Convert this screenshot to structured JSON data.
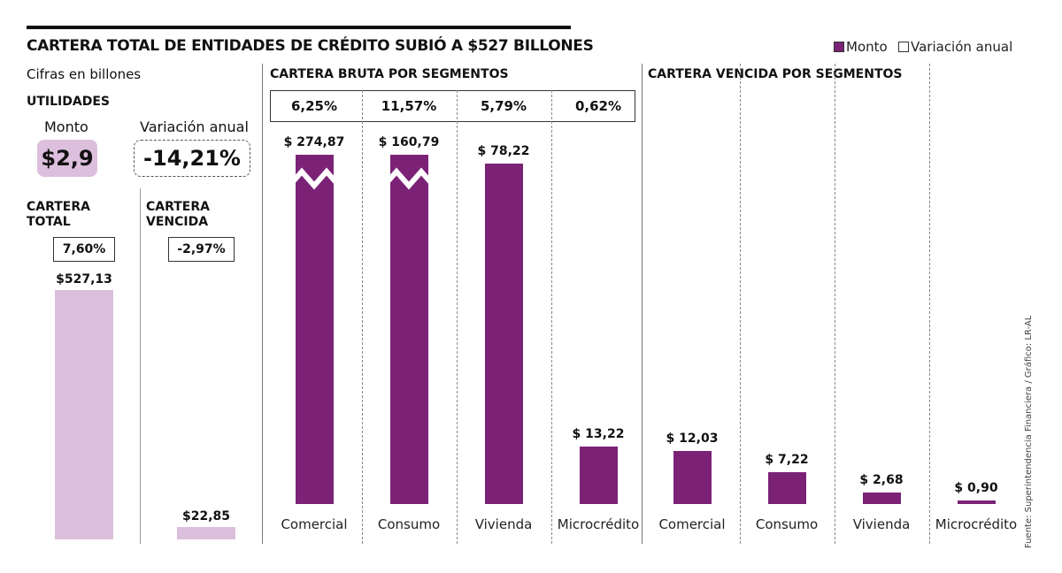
{
  "title": "CARTERA TOTAL DE ENTIDADES DE CRÉDITO SUBIÓ A $527 BILLONES",
  "legend": [
    {
      "label": "Monto",
      "color": "#7b2277"
    },
    {
      "label": "Variación anual",
      "color": "#ffffff"
    }
  ],
  "subtitle": "Cifras en billones",
  "utilidades": {
    "heading": "UTILIDADES",
    "monto_label": "Monto",
    "monto": "$2,9",
    "variacion_label": "Variación anual",
    "variacion": "-14,21%"
  },
  "source": "Fuente: Superintendencia Financiera / Gráfico: LR-AL",
  "colors": {
    "bar": "#7b2277",
    "light_bar": "#dcbfdc"
  },
  "chart_data": [
    {
      "type": "bar",
      "title": "CARTERA TOTAL",
      "categories": [
        "CARTERA TOTAL"
      ],
      "values": [
        527.13
      ],
      "value_labels": [
        "$527,13"
      ],
      "variation": [
        "7,60%"
      ]
    },
    {
      "type": "bar",
      "title": "CARTERA VENCIDA",
      "categories": [
        "CARTERA VENCIDA"
      ],
      "values": [
        22.85
      ],
      "value_labels": [
        "$22,85"
      ],
      "variation": [
        "-2,97%"
      ]
    },
    {
      "type": "bar",
      "title": "CARTERA BRUTA POR SEGMENTOS",
      "categories": [
        "Comercial",
        "Consumo",
        "Vivienda",
        "Microcrédito"
      ],
      "values": [
        274.87,
        160.79,
        78.22,
        13.22
      ],
      "value_labels": [
        "$ 274,87",
        "$ 160,79",
        "$ 78,22",
        "$ 13,22"
      ],
      "variation": [
        "6,25%",
        "11,57%",
        "5,79%",
        "0,62%"
      ],
      "axis_break": true
    },
    {
      "type": "bar",
      "title": "CARTERA VENCIDA POR SEGMENTOS",
      "categories": [
        "Comercial",
        "Consumo",
        "Vivienda",
        "Microcrédito"
      ],
      "values": [
        12.03,
        7.22,
        2.68,
        0.9
      ],
      "value_labels": [
        "$ 12,03",
        "$ 7,22",
        "$ 2,68",
        "$ 0,90"
      ]
    }
  ]
}
